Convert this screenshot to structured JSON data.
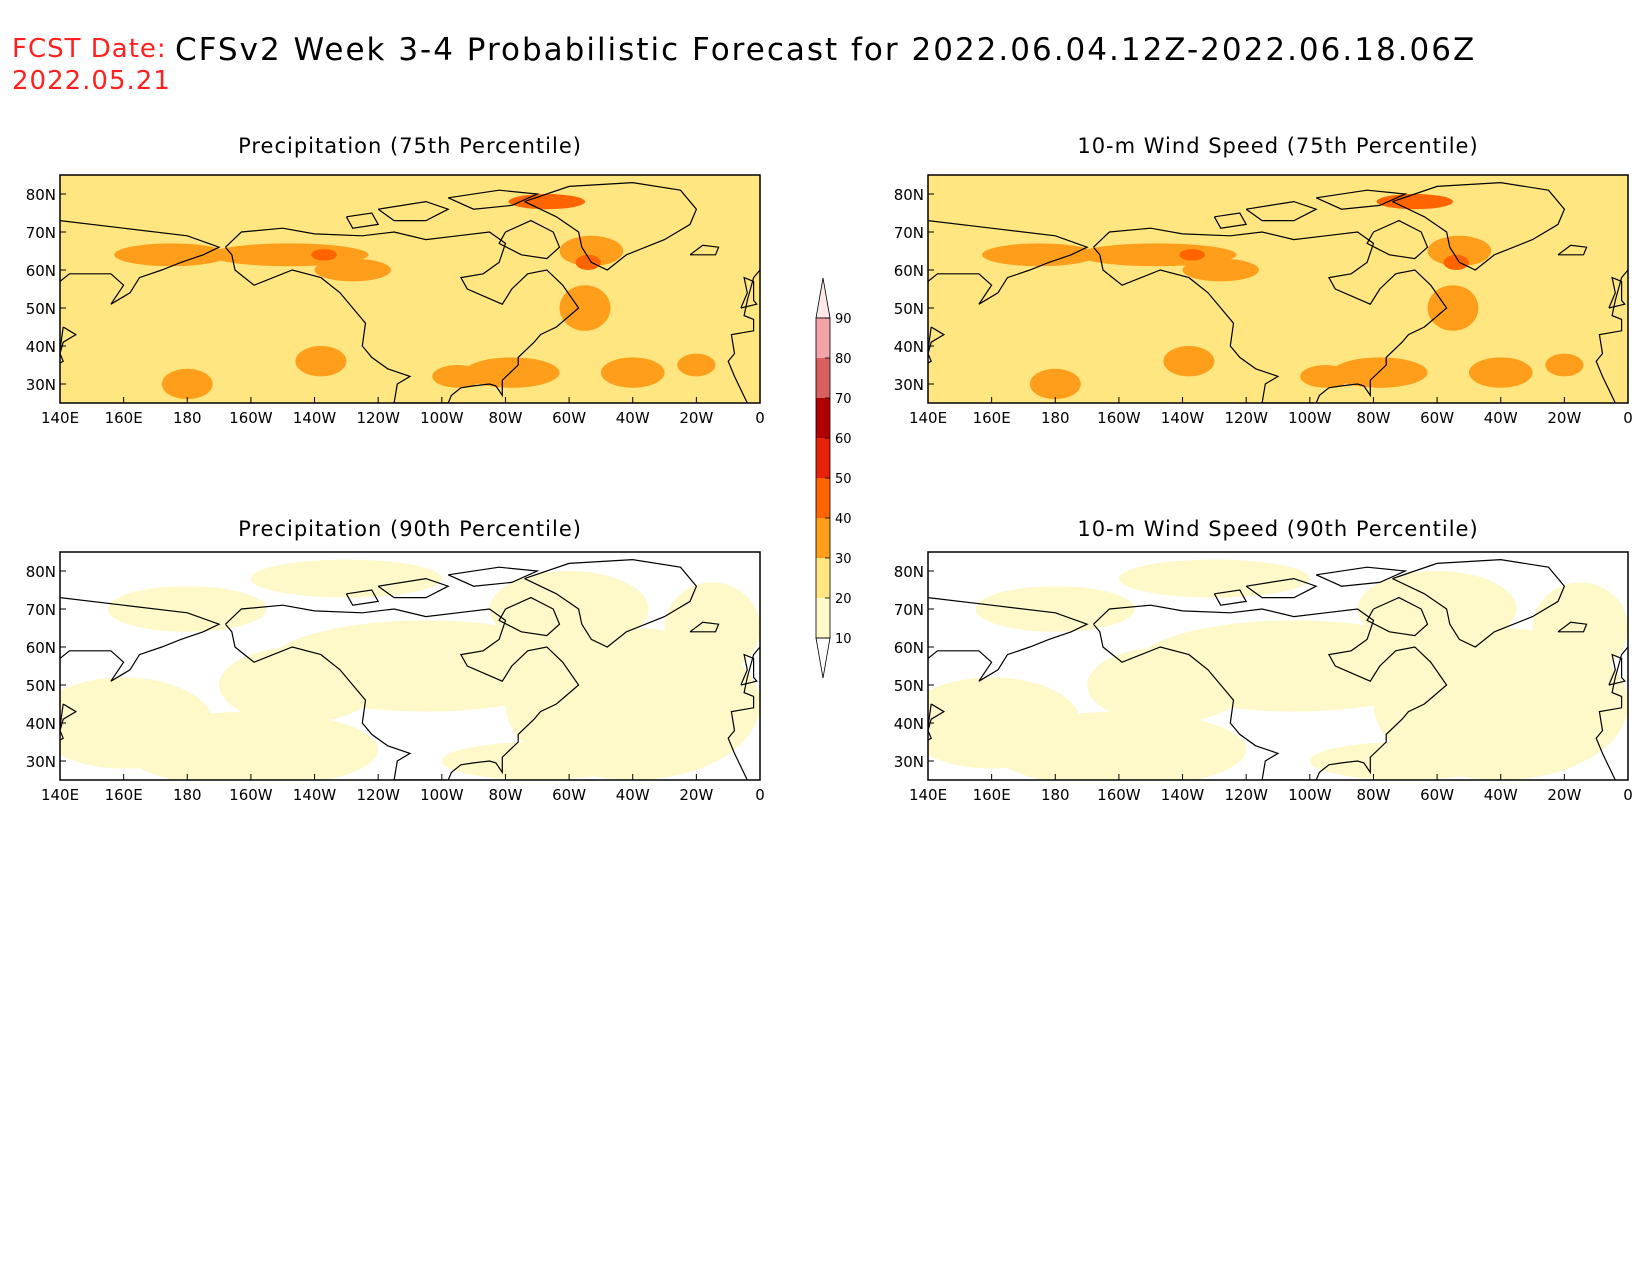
{
  "header": {
    "fcst_label": "FCST Date:",
    "fcst_date": "2022.05.21",
    "title": "CFSv2 Week 3-4 Probabilistic Forecast for 2022.06.04.12Z-2022.06.18.06Z"
  },
  "colors": {
    "land_outline": "#000000",
    "frame": "#000000",
    "scale": [
      "#fff8c8",
      "#ffe680",
      "#ff9e1a",
      "#ff6400",
      "#e8210a",
      "#b00000",
      "#d96060",
      "#f2a3a8",
      "#ffe8ea"
    ]
  },
  "colorbar": {
    "labels": [
      "10",
      "20",
      "30",
      "40",
      "50",
      "60",
      "70",
      "80",
      "90"
    ]
  },
  "maps": [
    {
      "title": "Precipitation (75th Percentile)",
      "lon_labels": [
        "140E",
        "160E",
        "180",
        "160W",
        "140W",
        "120W",
        "100W",
        "80W",
        "60W",
        "40W",
        "20W",
        "0"
      ],
      "lat_labels": [
        "80N",
        "70N",
        "60N",
        "50N",
        "40N",
        "30N"
      ],
      "lon_range": [
        140,
        360
      ],
      "lat_range": [
        25,
        85
      ],
      "level": "high"
    },
    {
      "title": "10-m Wind Speed (75th Percentile)",
      "lon_labels": [
        "140E",
        "160E",
        "180",
        "160W",
        "140W",
        "120W",
        "100W",
        "80W",
        "60W",
        "40W",
        "20W",
        "0"
      ],
      "lat_labels": [
        "80N",
        "70N",
        "60N",
        "50N",
        "40N",
        "30N"
      ],
      "lon_range": [
        140,
        360
      ],
      "lat_range": [
        25,
        85
      ],
      "level": "high"
    },
    {
      "title": "Precipitation (90th Percentile)",
      "lon_labels": [
        "140E",
        "160E",
        "180",
        "160W",
        "140W",
        "120W",
        "100W",
        "80W",
        "60W",
        "40W",
        "20W",
        "0"
      ],
      "lat_labels": [
        "80N",
        "70N",
        "60N",
        "50N",
        "40N",
        "30N"
      ],
      "lon_range": [
        140,
        360
      ],
      "lat_range": [
        25,
        85
      ],
      "level": "low"
    },
    {
      "title": "10-m Wind Speed (90th Percentile)",
      "lon_labels": [
        "140E",
        "160E",
        "180",
        "160W",
        "140W",
        "120W",
        "100W",
        "80W",
        "60W",
        "40W",
        "20W",
        "0"
      ],
      "lat_labels": [
        "80N",
        "70N",
        "60N",
        "50N",
        "40N",
        "30N"
      ],
      "lon_range": [
        140,
        360
      ],
      "lat_range": [
        25,
        85
      ],
      "level": "low"
    }
  ]
}
